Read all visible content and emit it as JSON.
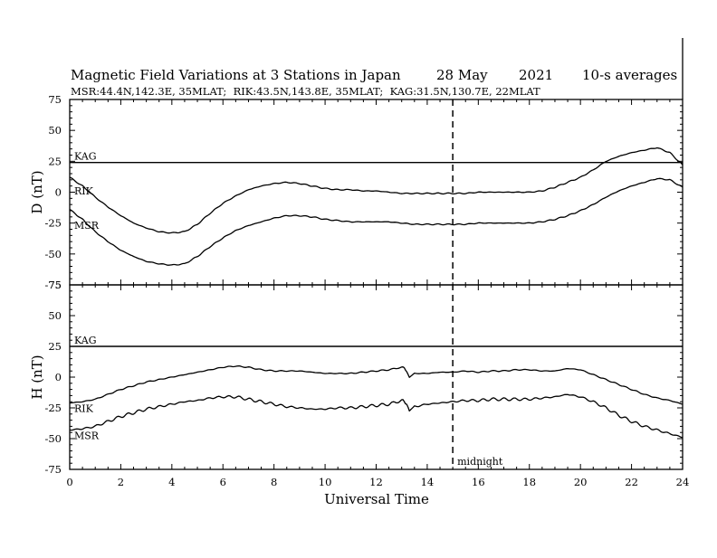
{
  "page": {
    "title": "Magnetic Field Variations at 3 Stations in Japan",
    "date": "28 May",
    "year": "2021",
    "averaging": "10-s averages",
    "stations_line": "MSR:44.4N,142.3E, 35MLAT;  RIK:43.5N,143.8E, 35MLAT;  KAG:31.5N,130.7E, 22MLAT"
  },
  "chart_data": [
    {
      "type": "line",
      "panel": "D",
      "ylabel": "D (nT)",
      "xlabel": "Universal Time",
      "xlim": [
        0,
        24
      ],
      "ylim": [
        -75,
        75
      ],
      "xticks": [
        0,
        2,
        4,
        6,
        8,
        10,
        12,
        14,
        16,
        18,
        20,
        22,
        24
      ],
      "xticklabels": [
        "0",
        "2",
        "4",
        "6",
        "8",
        "10",
        "12",
        "14",
        "16",
        "18",
        "20",
        "22",
        "24"
      ],
      "yticks": [
        75,
        50,
        25,
        0,
        -25,
        -50,
        -75
      ],
      "yticklabels": [
        "75",
        "50",
        "25",
        "0",
        "-25",
        "-50",
        "-75"
      ],
      "grid": false,
      "series": [
        {
          "name": "KAG",
          "x": [
            0,
            24
          ],
          "y": [
            24,
            24
          ]
        },
        {
          "name": "RIK",
          "x": [
            0,
            0.5,
            1,
            1.5,
            2,
            2.5,
            3,
            3.5,
            4,
            4.5,
            5,
            5.5,
            6,
            6.5,
            7,
            7.5,
            8,
            8.5,
            9,
            9.5,
            10,
            10.5,
            11,
            11.5,
            12,
            12.5,
            13,
            13.5,
            14,
            14.5,
            15,
            15.5,
            16,
            16.5,
            17,
            17.5,
            18,
            18.5,
            19,
            19.5,
            20,
            20.5,
            21,
            21.5,
            22,
            22.5,
            23,
            23.5,
            24
          ],
          "y": [
            12,
            5,
            -4,
            -12,
            -19,
            -25,
            -29,
            -32,
            -33,
            -32,
            -26,
            -17,
            -9,
            -3,
            2,
            5,
            7,
            8,
            7,
            5,
            3,
            2,
            2,
            1,
            1,
            0,
            -1,
            -1,
            -1,
            -1,
            -1,
            -1,
            0,
            0,
            0,
            0,
            0,
            1,
            4,
            8,
            12,
            18,
            25,
            29,
            32,
            34,
            36,
            32,
            22
          ]
        },
        {
          "name": "MSR",
          "x": [
            0,
            0.5,
            1,
            1.5,
            2,
            2.5,
            3,
            3.5,
            4,
            4.5,
            5,
            5.5,
            6,
            6.5,
            7,
            7.5,
            8,
            8.5,
            9,
            9.5,
            10,
            10.5,
            11,
            11.5,
            12,
            12.5,
            13,
            13.5,
            14,
            14.5,
            15,
            15.5,
            16,
            16.5,
            17,
            17.5,
            18,
            18.5,
            19,
            19.5,
            20,
            20.5,
            21,
            21.5,
            22,
            22.5,
            23,
            23.5,
            24
          ],
          "y": [
            -14,
            -22,
            -32,
            -40,
            -47,
            -52,
            -56,
            -58,
            -59,
            -58,
            -52,
            -44,
            -37,
            -31,
            -27,
            -24,
            -21,
            -19,
            -19,
            -20,
            -22,
            -23,
            -24,
            -24,
            -24,
            -24,
            -25,
            -26,
            -26,
            -26,
            -26,
            -26,
            -25,
            -25,
            -25,
            -25,
            -25,
            -24,
            -22,
            -19,
            -15,
            -10,
            -4,
            1,
            5,
            8,
            11,
            10,
            4
          ]
        }
      ]
    },
    {
      "type": "line",
      "panel": "H",
      "ylabel": "H (nT)",
      "xlabel": "Universal Time",
      "xlim": [
        0,
        24
      ],
      "ylim": [
        -75,
        75
      ],
      "xticks": [
        0,
        2,
        4,
        6,
        8,
        10,
        12,
        14,
        16,
        18,
        20,
        22,
        24
      ],
      "xticklabels": [
        "0",
        "2",
        "4",
        "6",
        "8",
        "10",
        "12",
        "14",
        "16",
        "18",
        "20",
        "22",
        "24"
      ],
      "yticks": [
        75,
        50,
        25,
        0,
        -25,
        -50,
        -75
      ],
      "yticklabels": [
        "75",
        "50",
        "25",
        "0",
        "-25",
        "-50",
        "-75"
      ],
      "grid": false,
      "series": [
        {
          "name": "KAG",
          "x": [
            0,
            24
          ],
          "y": [
            25,
            25
          ]
        },
        {
          "name": "RIK",
          "x": [
            0,
            0.5,
            1,
            1.5,
            2,
            2.5,
            3,
            3.5,
            4,
            4.5,
            5,
            5.5,
            6,
            6.5,
            7,
            7.5,
            8,
            8.5,
            9,
            9.5,
            10,
            10.5,
            11,
            11.5,
            12,
            12.5,
            13,
            13.1,
            13.3,
            13.5,
            14,
            14.5,
            15,
            15.5,
            16,
            16.5,
            17,
            17.5,
            18,
            18.5,
            19,
            19.5,
            20,
            20.5,
            21,
            21.5,
            22,
            22.5,
            23,
            23.5,
            24
          ],
          "y": [
            -21,
            -20,
            -18,
            -14,
            -10,
            -7,
            -4,
            -2,
            0,
            2,
            4,
            6,
            8,
            9,
            8,
            6,
            5,
            5,
            5,
            4,
            3,
            3,
            3,
            4,
            5,
            6,
            8,
            8,
            0,
            3,
            3,
            4,
            4,
            5,
            4,
            5,
            5,
            6,
            6,
            5,
            5,
            7,
            6,
            2,
            -2,
            -6,
            -10,
            -14,
            -17,
            -19,
            -22
          ]
        },
        {
          "name": "MSR",
          "x": [
            0,
            0.5,
            1,
            1.5,
            2,
            2.5,
            3,
            3.5,
            4,
            4.5,
            5,
            5.5,
            6,
            6.5,
            7,
            7.5,
            8,
            8.5,
            9,
            9.5,
            10,
            10.5,
            11,
            11.5,
            12,
            12.5,
            13,
            13.1,
            13.3,
            13.5,
            14,
            14.5,
            15,
            15.5,
            16,
            16.5,
            17,
            17.5,
            18,
            18.5,
            19,
            19.5,
            20,
            20.5,
            21,
            21.5,
            22,
            22.5,
            23,
            23.5,
            24
          ],
          "y": [
            -43,
            -42,
            -40,
            -36,
            -32,
            -29,
            -26,
            -24,
            -22,
            -20,
            -19,
            -17,
            -16,
            -16,
            -18,
            -20,
            -22,
            -24,
            -25,
            -26,
            -26,
            -25,
            -25,
            -24,
            -23,
            -22,
            -19,
            -19,
            -27,
            -24,
            -22,
            -21,
            -20,
            -19,
            -19,
            -18,
            -18,
            -18,
            -18,
            -17,
            -16,
            -14,
            -16,
            -20,
            -25,
            -31,
            -36,
            -40,
            -43,
            -46,
            -49
          ]
        }
      ]
    }
  ],
  "annotation": {
    "label": "midnight",
    "x": 15
  }
}
